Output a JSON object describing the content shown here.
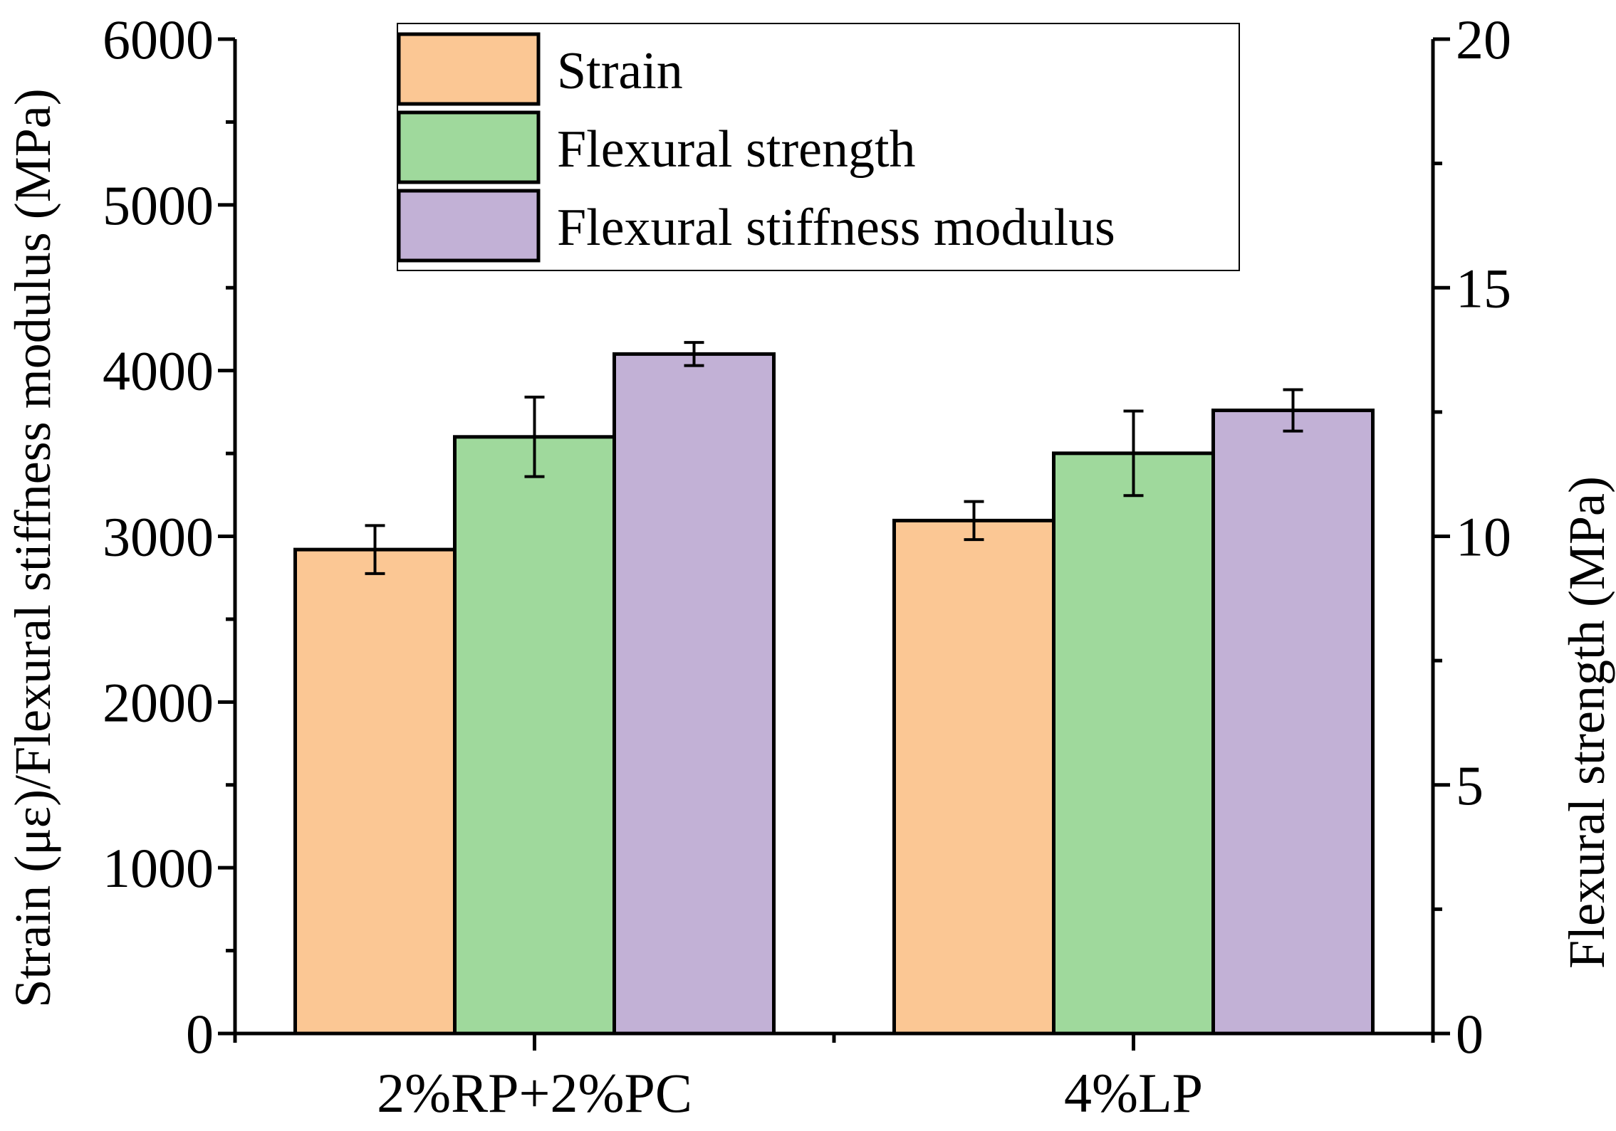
{
  "chart_data": {
    "type": "bar",
    "categories": [
      "2%RP+2%PC",
      "4%LP"
    ],
    "series": [
      {
        "name": "Strain",
        "axis": "left",
        "color": "#fbc794",
        "values": [
          2920,
          3095
        ],
        "errors": [
          145,
          115
        ]
      },
      {
        "name": "Flexural strength",
        "axis": "right",
        "color": "#9fd99c",
        "values": [
          12.0,
          11.67
        ],
        "errors": [
          0.8,
          0.85
        ]
      },
      {
        "name": "Flexural stiffness modulus",
        "axis": "left",
        "color": "#c2b1d6",
        "values": [
          4100,
          3760
        ],
        "errors": [
          70,
          125
        ]
      }
    ],
    "y_left": {
      "label": "Strain (με)/Flexural stiffness modulus (MPa)",
      "ylim": [
        0,
        6000
      ],
      "ticks": [
        "0",
        "1000",
        "2000",
        "3000",
        "4000",
        "5000",
        "6000"
      ]
    },
    "y_right": {
      "label": "Flexural strength (MPa)",
      "ylim": [
        0,
        20
      ],
      "ticks": [
        "0",
        "5",
        "10",
        "15",
        "20"
      ]
    },
    "legend": {
      "position": "top-center",
      "entries": [
        "Strain",
        "Flexural strength",
        "Flexural stiffness modulus"
      ]
    },
    "grid": false
  }
}
